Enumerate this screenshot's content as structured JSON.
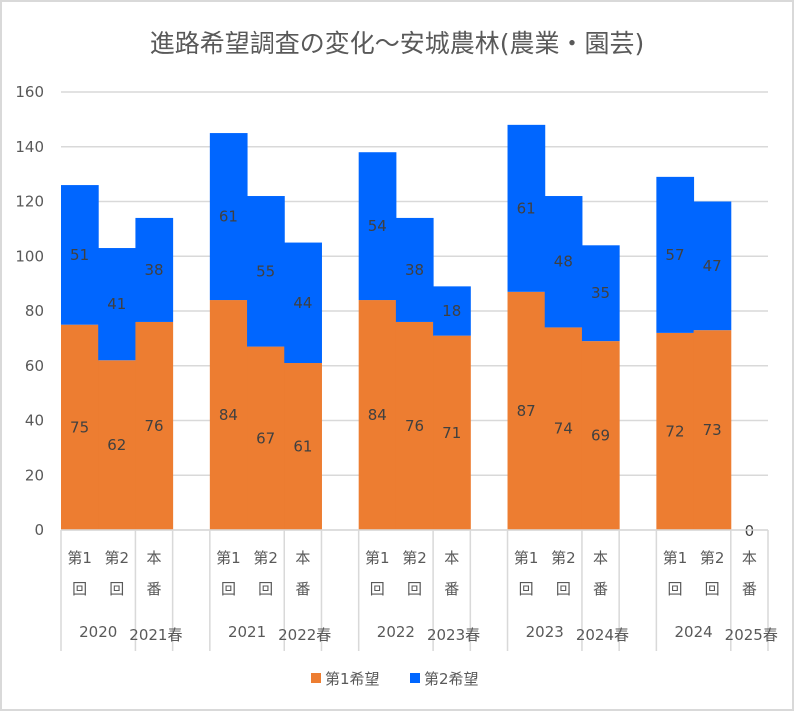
{
  "chart_data": {
    "type": "bar",
    "stacked": true,
    "title": "進路希望調査の変化～安城農林(農業・園芸)",
    "xlabel": "",
    "ylabel": "",
    "ylim": [
      0,
      160
    ],
    "yticks": [
      0,
      20,
      40,
      60,
      80,
      100,
      120,
      140,
      160
    ],
    "grid": true,
    "legend_position": "bottom",
    "colors": {
      "series1": "#ED7D31",
      "series2": "#0066FF",
      "grid": "#d9d9d9",
      "text": "#595959"
    },
    "subcategory_labels": [
      [
        "第1",
        "回"
      ],
      [
        "第2",
        "回"
      ],
      [
        "本",
        "番"
      ]
    ],
    "groups": [
      {
        "year_label": "2020",
        "spring_label": "2021春"
      },
      {
        "year_label": "2021",
        "spring_label": "2022春"
      },
      {
        "year_label": "2022",
        "spring_label": "2023春"
      },
      {
        "year_label": "2023",
        "spring_label": "2024春"
      },
      {
        "year_label": "2024",
        "spring_label": "2025春"
      }
    ],
    "series": [
      {
        "name": "第1希望",
        "values": [
          75,
          62,
          76,
          84,
          67,
          61,
          84,
          76,
          71,
          87,
          74,
          69,
          72,
          73,
          0
        ]
      },
      {
        "name": "第2希望",
        "values": [
          51,
          41,
          38,
          61,
          55,
          44,
          54,
          38,
          18,
          61,
          48,
          35,
          57,
          47,
          0
        ]
      }
    ],
    "labels_series1": [
      "75",
      "62",
      "76",
      "84",
      "67",
      "61",
      "84",
      "76",
      "71",
      "87",
      "74",
      "69",
      "72",
      "73",
      "0"
    ],
    "labels_series2": [
      "51",
      "41",
      "38",
      "61",
      "55",
      "44",
      "54",
      "38",
      "18",
      "61",
      "48",
      "35",
      "57",
      "47",
      ""
    ]
  }
}
